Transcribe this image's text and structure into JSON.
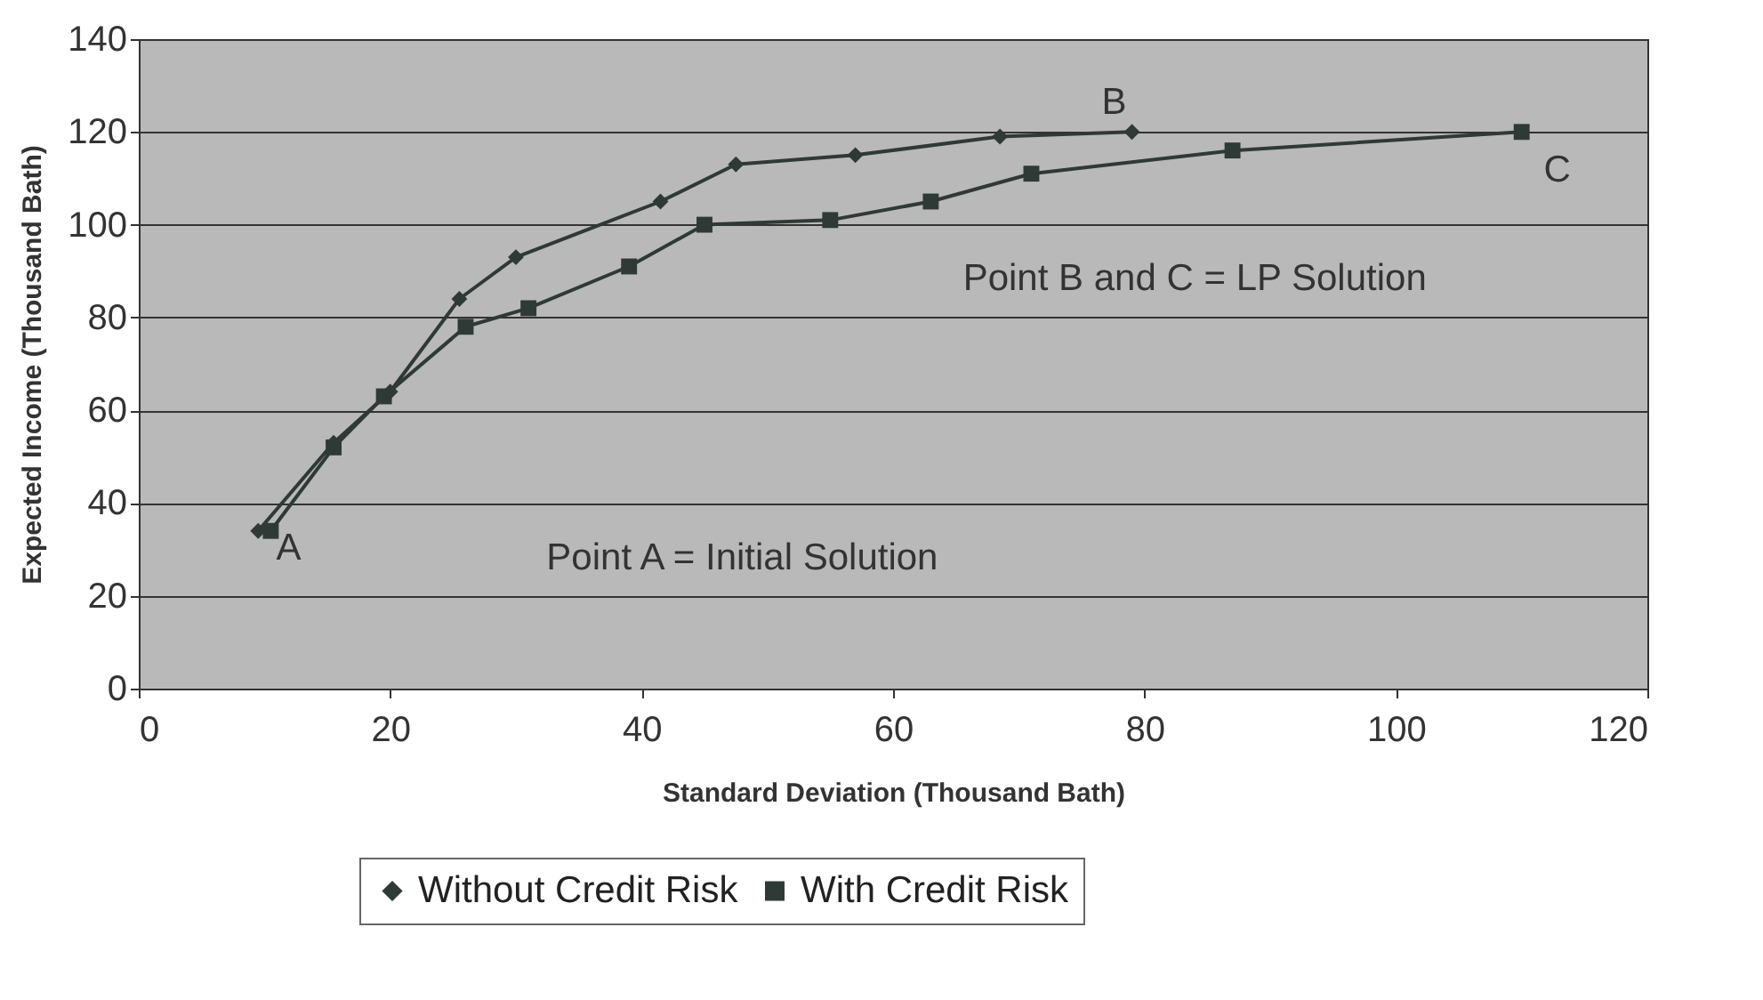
{
  "chart_data": {
    "type": "line",
    "xlabel": "Standard Deviation (Thousand Bath)",
    "ylabel": "Expected Income (Thousand Bath)",
    "xlim": [
      0,
      120
    ],
    "xticks": [
      0,
      20,
      40,
      60,
      80,
      100,
      120
    ],
    "ylim": [
      0,
      140
    ],
    "yticks": [
      0,
      20,
      40,
      60,
      80,
      100,
      120,
      140
    ],
    "grid": "y",
    "legend": "bottom",
    "series": [
      {
        "name": "Without Credit Risk",
        "color": "#2f3a36",
        "marker": "diamond",
        "x": [
          9.5,
          15.5,
          20,
          25.5,
          30,
          41.5,
          47.5,
          57,
          68.5,
          79
        ],
        "values": [
          34,
          53,
          64,
          84,
          93,
          105,
          113,
          115,
          119,
          120
        ]
      },
      {
        "name": "With Credit Risk",
        "color": "#2f3a36",
        "marker": "square",
        "x": [
          10.5,
          15.5,
          19.5,
          26,
          31,
          39,
          45,
          55,
          63,
          71,
          87,
          110
        ],
        "values": [
          34,
          52,
          63,
          78,
          82,
          91,
          100,
          101,
          105,
          111,
          116,
          120
        ]
      }
    ],
    "annotations": [
      {
        "text": "A",
        "x": 10.5,
        "y": 34
      },
      {
        "text": "B",
        "x": 79,
        "y": 120
      },
      {
        "text": "C",
        "x": 110,
        "y": 120
      },
      "Point B and C = LP Solution",
      "Point A = Initial Solution"
    ]
  }
}
